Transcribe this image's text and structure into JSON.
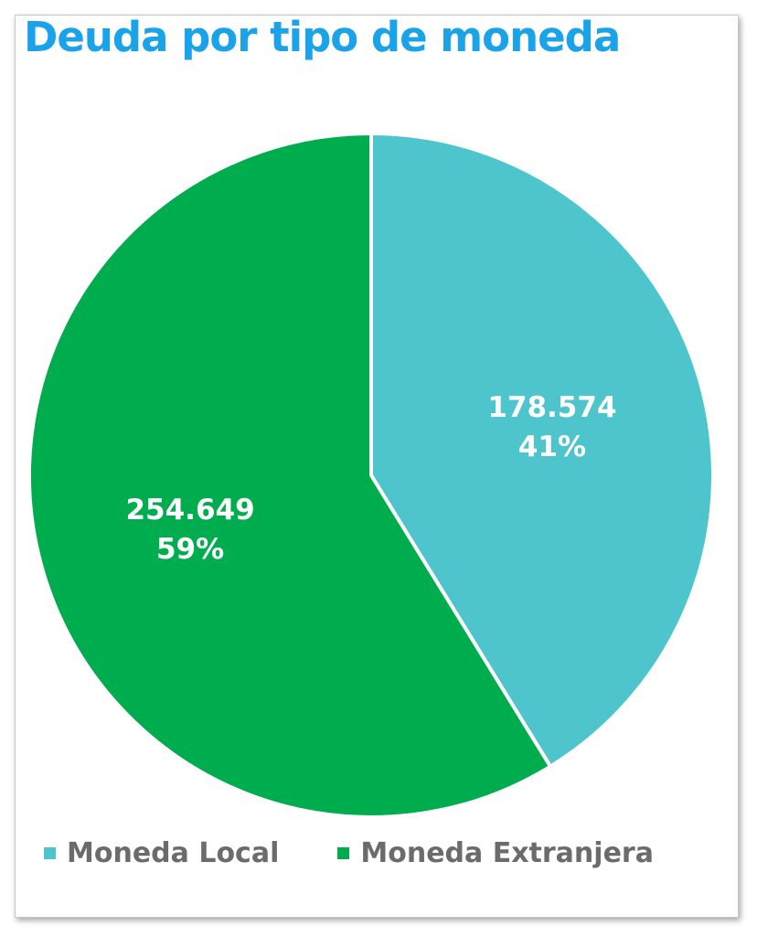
{
  "chart_data": {
    "type": "pie",
    "title": "Deuda por tipo de moneda",
    "slices": [
      {
        "label": "Moneda Local",
        "value": 178574,
        "value_text": "178.574",
        "percent_text": "41%",
        "color": "#4ec5cc"
      },
      {
        "label": "Moneda Extranjera",
        "value": 254649,
        "value_text": "254.649",
        "percent_text": "59%",
        "color": "#00ad4e"
      }
    ],
    "legend_position": "bottom",
    "start_angle": "12 o'clock",
    "direction": "clockwise"
  },
  "colors": {
    "title": "#1aa3e8",
    "legend_text": "#6b6b6b",
    "label_text": "#ffffff"
  }
}
